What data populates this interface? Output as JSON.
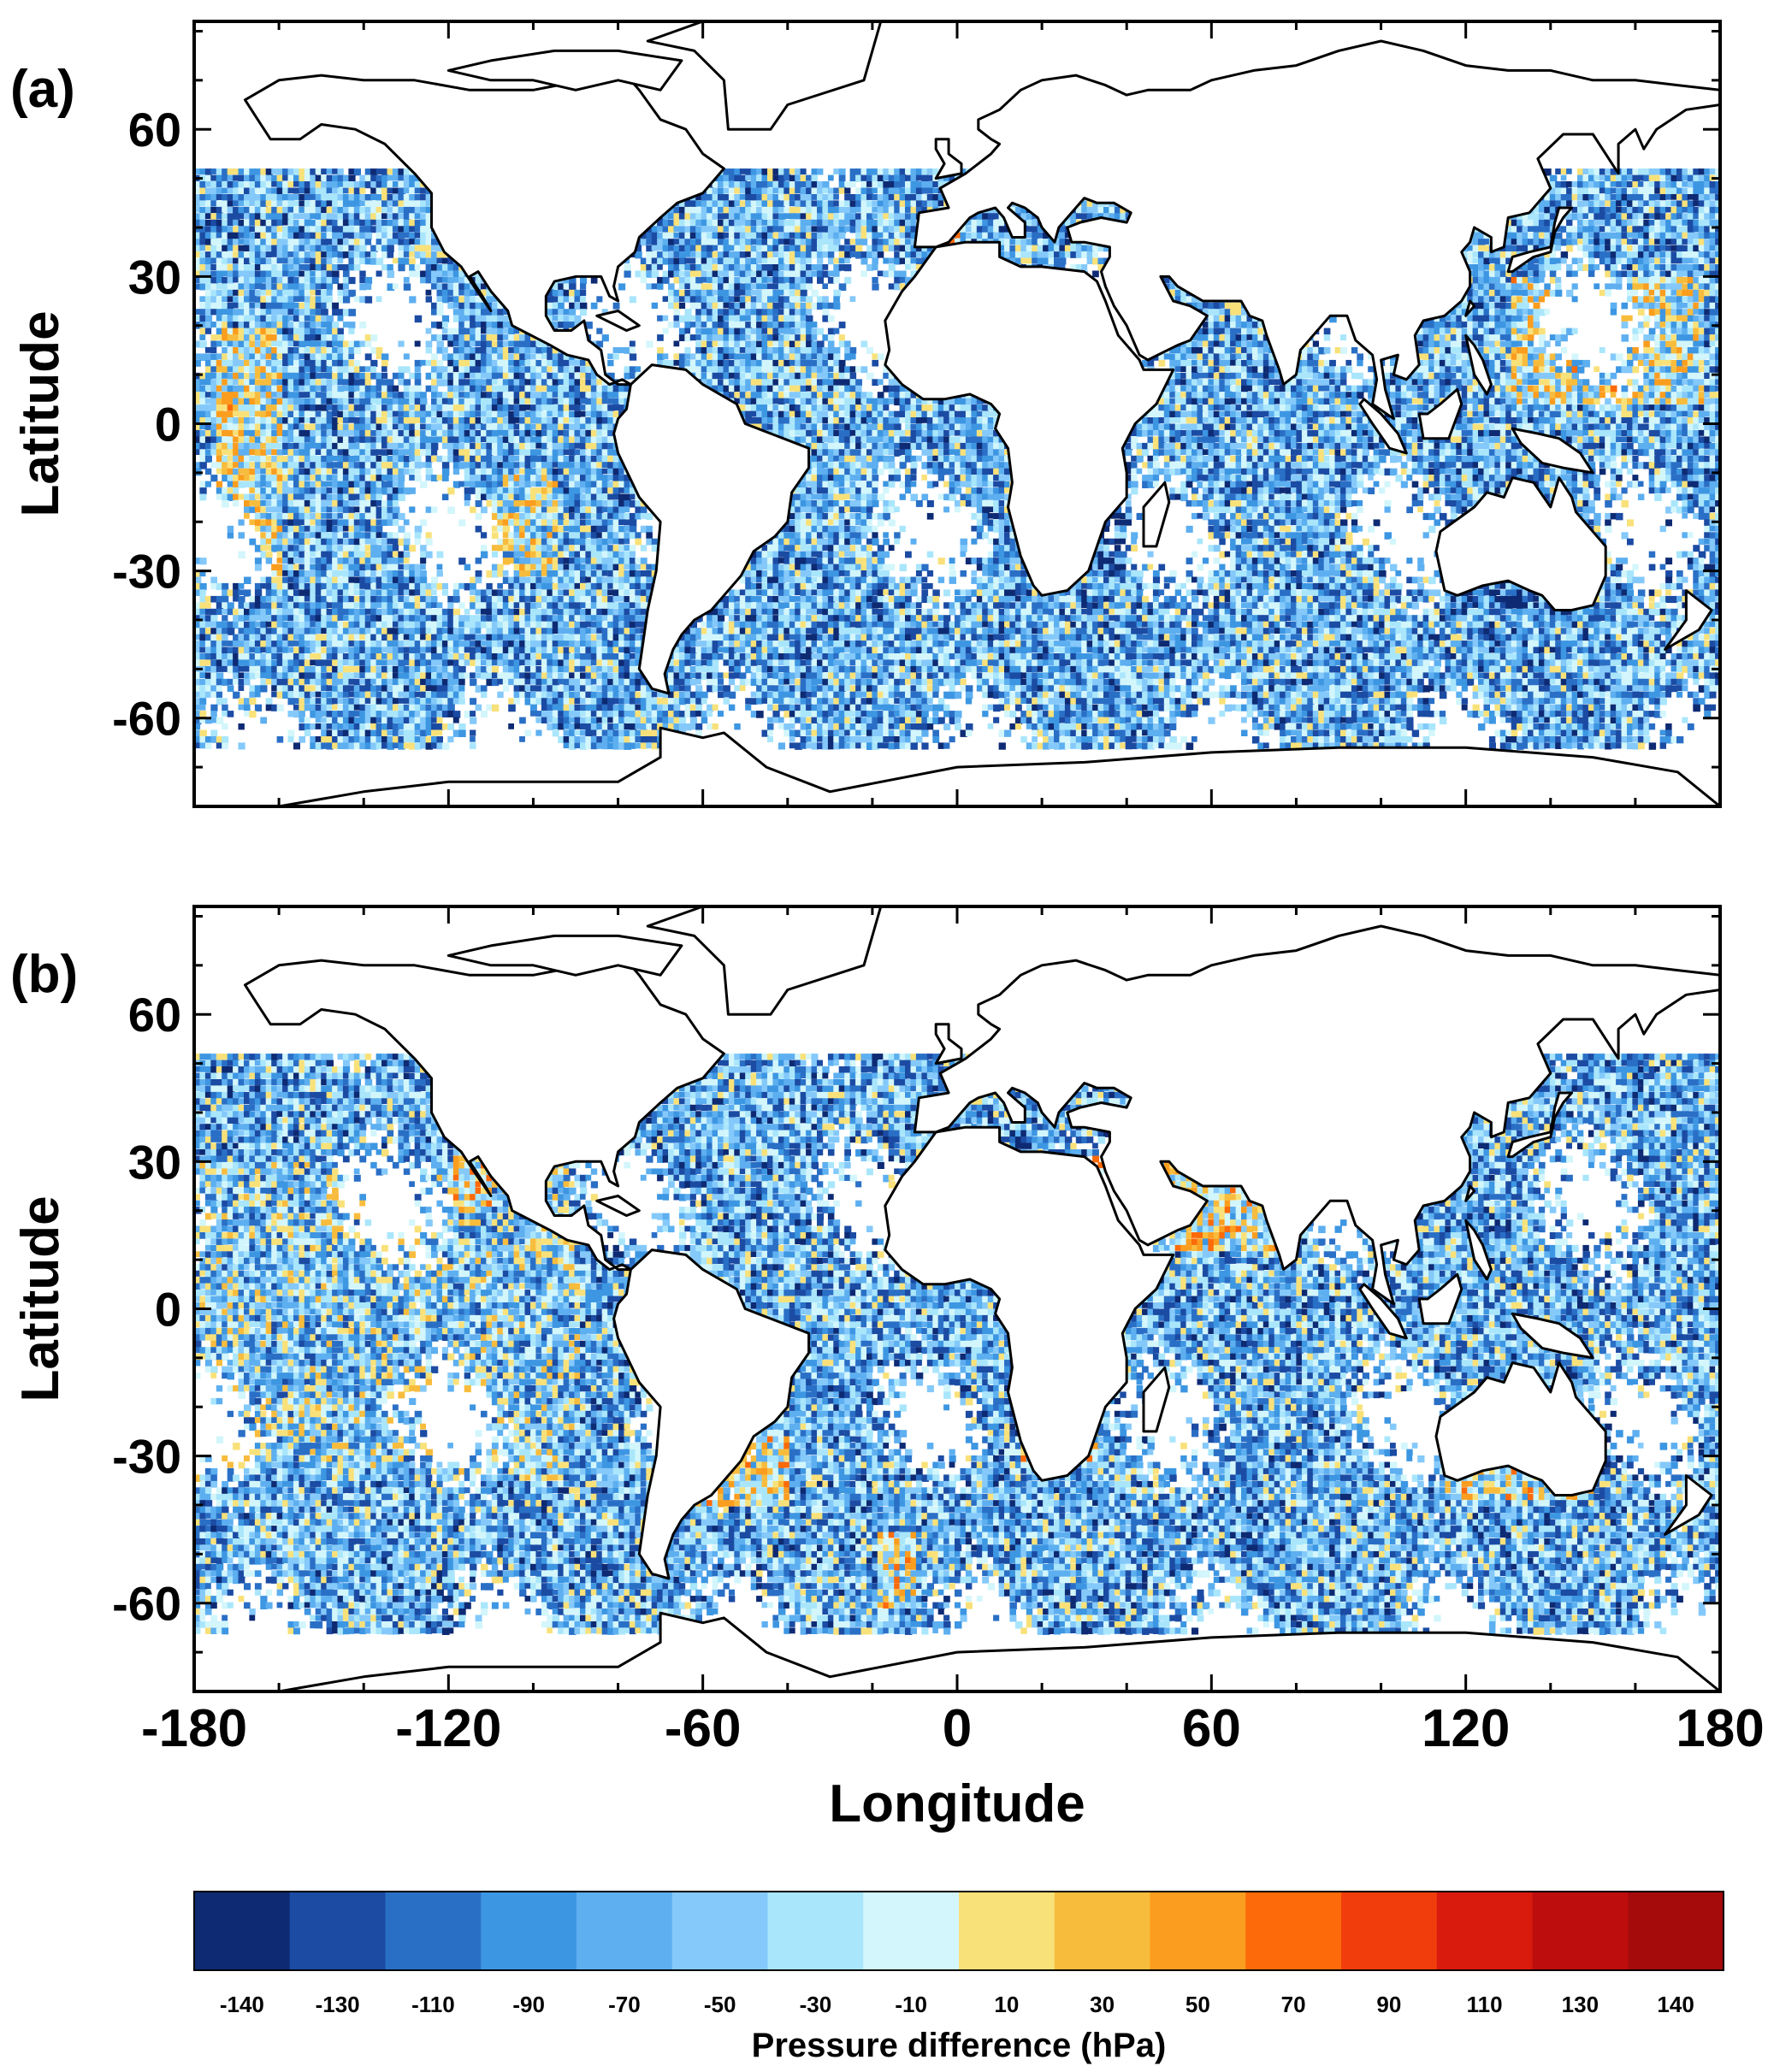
{
  "panels": [
    {
      "label": "(a)",
      "scene": "a"
    },
    {
      "label": "(b)",
      "scene": "b"
    }
  ],
  "axes": {
    "y_title": "Latitude",
    "x_title": "Longitude",
    "y_ticks": [
      "60",
      "30",
      "0",
      "-30",
      "-60"
    ],
    "x_ticks": [
      "-180",
      "-120",
      "-60",
      "0",
      "60",
      "120",
      "180"
    ]
  },
  "colorbar": {
    "title": "Pressure difference (hPa)",
    "labels": [
      "-140",
      "-130",
      "-110",
      "-90",
      "-70",
      "-50",
      "-30",
      "-10",
      "10",
      "30",
      "50",
      "70",
      "90",
      "110",
      "130",
      "140"
    ],
    "colors": [
      "#0d2a73",
      "#1b4ba3",
      "#2a6fc6",
      "#3d96e2",
      "#5daff0",
      "#84c9fa",
      "#a9e6fc",
      "#d2f6fb",
      "#f9e17a",
      "#f8bc3d",
      "#fb9d1e",
      "#fc6a09",
      "#f13d0b",
      "#d91b0e",
      "#bd0d0d",
      "#a50b0b"
    ]
  }
}
